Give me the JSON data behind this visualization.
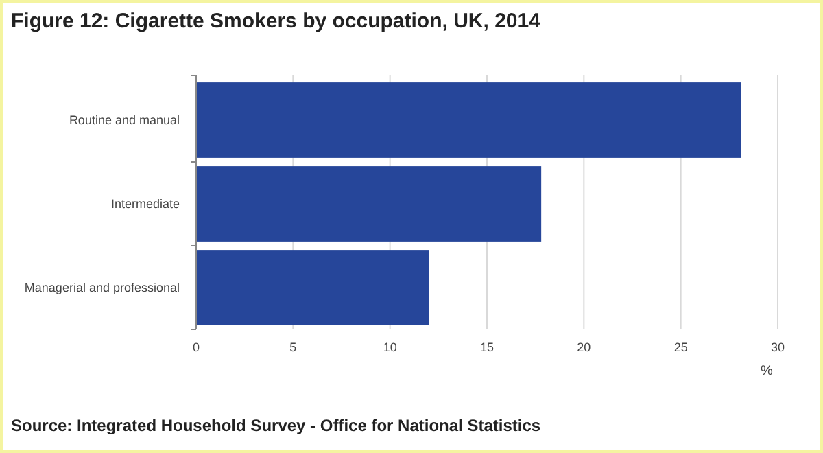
{
  "chart_data": {
    "type": "bar",
    "orientation": "horizontal",
    "title": "Figure 12: Cigarette Smokers by occupation, UK, 2014",
    "categories": [
      "Routine and manual",
      "Intermediate",
      "Managerial and professional"
    ],
    "values": [
      28.1,
      17.8,
      12.0
    ],
    "color": "#26469a",
    "xlim": [
      0,
      30
    ],
    "xticks": [
      0,
      5,
      10,
      15,
      20,
      25,
      30
    ],
    "xlabel": "%",
    "grid": "x",
    "annotations": [
      "Source: Integrated Household Survey - Office for National Statistics"
    ]
  }
}
